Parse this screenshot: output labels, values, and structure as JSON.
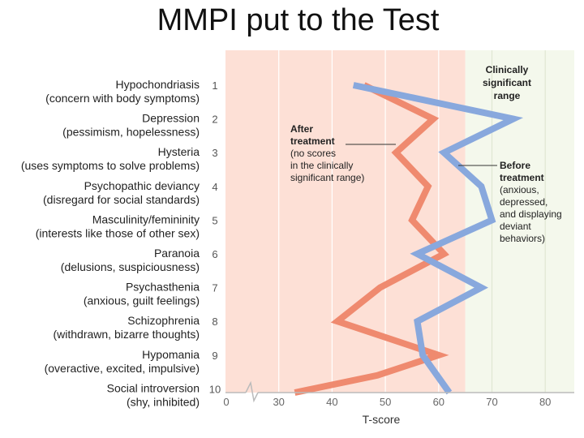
{
  "page_title": "MMPI put to the Test",
  "chart_data": {
    "type": "line",
    "title": "MMPI put to the Test",
    "xlabel": "T-score",
    "xlim": [
      20,
      85
    ],
    "x_ticks": [
      "0",
      "30",
      "40",
      "50",
      "60",
      "70",
      "80"
    ],
    "x_tick_values": [
      25,
      30,
      40,
      50,
      60,
      70,
      80
    ],
    "clinical_threshold": 65,
    "scales": [
      {
        "num": "1",
        "name": "Hypochondriasis",
        "desc": "(concern with body symptoms)"
      },
      {
        "num": "2",
        "name": "Depression",
        "desc": "(pessimism, hopelessness)"
      },
      {
        "num": "3",
        "name": "Hysteria",
        "desc": "(uses symptoms to solve problems)"
      },
      {
        "num": "4",
        "name": "Psychopathic deviancy",
        "desc": "(disregard for social standards)"
      },
      {
        "num": "5",
        "name": "Masculinity/femininity",
        "desc": "(interests like those of other sex)"
      },
      {
        "num": "6",
        "name": "Paranoia",
        "desc": "(delusions, suspiciousness)"
      },
      {
        "num": "7",
        "name": "Psychasthenia",
        "desc": "(anxious, guilt feelings)"
      },
      {
        "num": "8",
        "name": "Schizophrenia",
        "desc": "(withdrawn, bizarre thoughts)"
      },
      {
        "num": "9",
        "name": "Hypomania",
        "desc": "(overactive, excited, impulsive)"
      },
      {
        "num": "10",
        "name": "Social introversion",
        "desc": "(shy, inhibited)"
      }
    ],
    "series": [
      {
        "name": "After treatment",
        "color": "#ef8a6f",
        "values": [
          46,
          59,
          52,
          58,
          55,
          61,
          49,
          41,
          60,
          33
        ]
      },
      {
        "name": "Before treatment",
        "color": "#88a8dd",
        "values": [
          44,
          74,
          61,
          68,
          70,
          56,
          68,
          56,
          57,
          62
        ]
      }
    ],
    "annotations": {
      "clinical": [
        "Clinically",
        "significant",
        "range"
      ],
      "after": {
        "bold": [
          "After",
          "treatment"
        ],
        "normal": [
          "(no scores",
          "in the clinically",
          "significant range)"
        ]
      },
      "before": {
        "bold": [
          "Before",
          "treatment"
        ],
        "normal": [
          "(anxious,",
          "depressed,",
          "and displaying",
          "deviant",
          "behaviors)"
        ]
      }
    },
    "colors": {
      "normal_bg": "#fde0d6",
      "clinical_bg": "#f4f8ec",
      "grid": "#ffffff"
    }
  }
}
